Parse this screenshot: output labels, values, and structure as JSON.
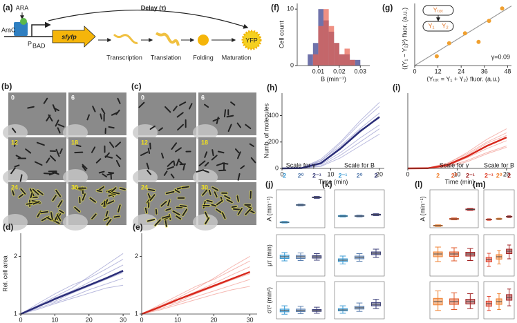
{
  "diagram": {
    "panel": "(a)",
    "inducer": "ARA",
    "activator": "AraC",
    "promoter": "P",
    "promoter_sub": "BAD",
    "gene": "sfyfp",
    "delay": "Delay (τ)",
    "steps": [
      "Transcription",
      "Translation",
      "Folding",
      "Maturation"
    ],
    "product": "YFP"
  },
  "micrographs": [
    {
      "panel": "(b)",
      "frames": [
        "0",
        "6",
        "12",
        "18",
        "24",
        "30"
      ]
    },
    {
      "panel": "(c)",
      "frames": [
        "0",
        "6",
        "12",
        "18",
        "24",
        "30"
      ]
    }
  ],
  "chart_data": [
    {
      "type": "histogram",
      "panel": "(f)",
      "ylabel": "Cell count",
      "xlabel": "B (min⁻¹)",
      "bins": [
        0.005,
        0.0075,
        0.01,
        0.0125,
        0.015,
        0.0175,
        0.02,
        0.0225,
        0.025,
        0.0275,
        0.03
      ],
      "series": [
        {
          "color": "#6f72aa",
          "values": [
            2,
            4,
            10,
            8,
            6,
            4,
            2,
            2,
            1,
            1
          ]
        },
        {
          "color": "#e8614f",
          "values": [
            0,
            2,
            7,
            10,
            7,
            4,
            2,
            3,
            1,
            0
          ]
        }
      ],
      "xlim": [
        0,
        0.0345
      ],
      "ylim": [
        0,
        11
      ],
      "xticks": [
        0.01,
        0.02,
        0.03
      ],
      "yticks": [
        0,
        10
      ]
    },
    {
      "type": "scatter",
      "panel": "(g)",
      "ylabel": "⟨(Y₁ − Y₂)²⟩ fluor. (a.u.)",
      "xlabel": "⟨Yₜₒₜ = Y₁ + Y₂⟩ fluor. (a.u.)",
      "x": [
        11.4,
        17.8,
        26,
        33,
        38.4,
        45.2
      ],
      "y": [
        0.75,
        1.8,
        2.6,
        1.9,
        3.6,
        4.6
      ],
      "color": "#f0a030",
      "fit": {
        "x": [
          0,
          50
        ],
        "y": [
          0,
          4.8
        ]
      },
      "fit_color": "#999999",
      "xlim": [
        0,
        50
      ],
      "ylim": [
        0,
        5
      ],
      "xticks": [
        0,
        12,
        24,
        36,
        48
      ],
      "annotation": "γ=0.09",
      "inset": {
        "total": "Yₜₒₜ",
        "first": "Y₁",
        "second": "Y₂"
      }
    },
    {
      "type": "line",
      "panel": "(d)",
      "ylabel": "Rel. cell area",
      "xlabel": "Time (min)",
      "x": [
        0,
        5,
        10,
        15,
        20,
        25,
        30
      ],
      "traces": [
        [
          1,
          1.15,
          1.3,
          1.45,
          1.65,
          1.85,
          2.05
        ],
        [
          1,
          1.1,
          1.2,
          1.3,
          1.42,
          1.52,
          1.62
        ],
        [
          1,
          1.18,
          1.35,
          1.5,
          1.62,
          1.78,
          1.95
        ],
        [
          1,
          1.08,
          1.18,
          1.27,
          1.36,
          1.45,
          1.5
        ],
        [
          1,
          1.12,
          1.28,
          1.4,
          1.55,
          1.7,
          1.85
        ],
        [
          1,
          1.14,
          1.22,
          1.36,
          1.48,
          1.6,
          1.72
        ]
      ],
      "mean": [
        1,
        1.13,
        1.26,
        1.38,
        1.5,
        1.62,
        1.75
      ],
      "trace_color": "#8a8cc8",
      "mean_color": "#2a2d78",
      "xlim": [
        0,
        32
      ],
      "ylim": [
        1,
        2.4
      ],
      "xticks": [
        0,
        10,
        20,
        30
      ],
      "yticks": [
        1,
        2
      ]
    },
    {
      "type": "line",
      "panel": "(e)",
      "xlabel": "Time (min)",
      "x": [
        0,
        5,
        10,
        15,
        20,
        25,
        30
      ],
      "traces": [
        [
          1,
          1.14,
          1.28,
          1.44,
          1.62,
          1.82,
          2.0
        ],
        [
          1,
          1.09,
          1.19,
          1.3,
          1.4,
          1.5,
          1.6
        ],
        [
          1,
          1.16,
          1.32,
          1.48,
          1.6,
          1.76,
          1.92
        ],
        [
          1,
          1.07,
          1.16,
          1.25,
          1.34,
          1.42,
          1.48
        ],
        [
          1,
          1.12,
          1.26,
          1.39,
          1.53,
          1.68,
          1.82
        ],
        [
          1,
          1.13,
          1.21,
          1.35,
          1.47,
          1.59,
          1.7
        ]
      ],
      "mean": [
        1,
        1.12,
        1.25,
        1.37,
        1.49,
        1.61,
        1.73
      ],
      "trace_color": "#f08a80",
      "mean_color": "#d8281c",
      "xlim": [
        0,
        32
      ],
      "ylim": [
        1,
        2.4
      ],
      "xticks": [
        0,
        10,
        20,
        30
      ],
      "yticks": [
        1,
        2
      ]
    },
    {
      "type": "line",
      "panel": "(h)",
      "ylabel": "Numb. of molecules",
      "xlabel": "Time (min)",
      "x": [
        0,
        4,
        8,
        12,
        16,
        20
      ],
      "traces": [
        [
          0,
          3,
          55,
          190,
          340,
          470
        ],
        [
          0,
          1,
          30,
          120,
          230,
          330
        ],
        [
          0,
          5,
          60,
          170,
          300,
          420
        ],
        [
          0,
          0,
          20,
          100,
          200,
          300
        ],
        [
          0,
          2,
          45,
          160,
          290,
          380
        ],
        [
          0,
          4,
          70,
          200,
          360,
          500
        ],
        [
          0,
          1,
          15,
          80,
          170,
          260
        ]
      ],
      "mean": [
        0,
        2,
        40,
        150,
        280,
        390
      ],
      "trace_color": "#8a8cc8",
      "mean_color": "#2a2d78",
      "xlim": [
        0,
        21
      ],
      "ylim": [
        0,
        570
      ],
      "xticks": [
        0,
        10,
        20
      ],
      "yticks": [
        0,
        200,
        400
      ]
    },
    {
      "type": "line",
      "panel": "(i)",
      "xlabel": "Time (min)",
      "x": [
        0,
        4,
        8,
        12,
        16,
        20
      ],
      "traces": [
        [
          0,
          2,
          35,
          120,
          220,
          300
        ],
        [
          0,
          0,
          15,
          60,
          120,
          170
        ],
        [
          0,
          3,
          40,
          110,
          200,
          270
        ],
        [
          0,
          1,
          20,
          80,
          150,
          210
        ],
        [
          0,
          2,
          30,
          100,
          190,
          250
        ],
        [
          0,
          0,
          10,
          50,
          110,
          160
        ]
      ],
      "mean": [
        0,
        1,
        25,
        90,
        170,
        235
      ],
      "trace_color": "#f08a80",
      "mean_color": "#d8281c",
      "xlim": [
        0,
        21
      ],
      "ylim": [
        0,
        570
      ],
      "xticks": [
        0,
        10,
        20
      ]
    },
    {
      "type": "box",
      "panel": "(j)",
      "header": "Scale for γ",
      "categories": [
        "2",
        "2⁰",
        "2⁻¹"
      ],
      "colors": [
        "#3a9bd5",
        "#5a7fb0",
        "#3b3f7a"
      ],
      "rows": [
        {
          "ylabel": "A (min⁻¹)",
          "ylim": [
            0,
            60
          ],
          "boxes": [
            [
              7.5,
              8.2,
              8.7,
              9.2,
              10
            ],
            [
              34.5,
              35.4,
              36,
              36.6,
              37.5
            ],
            [
              46.5,
              47.4,
              48,
              48.6,
              49.5
            ]
          ]
        },
        {
          "ylabel": "μτ (min)",
          "ylim": [
            0,
            12
          ],
          "boxes": [
            [
              4.4,
              5.1,
              5.6,
              6.1,
              6.8
            ],
            [
              4.5,
              5.1,
              5.6,
              6.0,
              6.7
            ],
            [
              4.6,
              5.2,
              5.6,
              5.9,
              6.5
            ]
          ]
        },
        {
          "ylabel": "στ² (min²)",
          "ylim": [
            0,
            40
          ],
          "boxes": [
            [
              5,
              7.5,
              8.9,
              10.5,
              14
            ],
            [
              5.5,
              7.8,
              9,
              10.5,
              13.5
            ],
            [
              6,
              8,
              9,
              10,
              12.5
            ]
          ]
        }
      ]
    },
    {
      "type": "box",
      "panel": "(k)",
      "header": "Scale for B",
      "categories": [
        "2⁻¹",
        "2⁰",
        "2"
      ],
      "colors": [
        "#3a9bd5",
        "#5a7fb0",
        "#3b3f7a"
      ],
      "rows": [
        {
          "ylim": [
            0,
            60
          ],
          "boxes": [
            [
              17,
              17.8,
              18.5,
              19.2,
              20
            ],
            [
              17,
              17.8,
              18.5,
              19.2,
              20
            ],
            [
              19.2,
              20,
              20.7,
              21.4,
              22.2
            ]
          ]
        },
        {
          "ylim": [
            0,
            12
          ],
          "boxes": [
            [
              3.5,
              4.2,
              4.6,
              5.0,
              5.8
            ],
            [
              4.3,
              5.0,
              5.4,
              5.8,
              6.5
            ],
            [
              5.4,
              6.2,
              6.6,
              7.0,
              7.8
            ]
          ]
        },
        {
          "ylim": [
            0,
            40
          ],
          "boxes": [
            [
              6,
              8.5,
              9.6,
              11,
              14
            ],
            [
              8,
              10.5,
              11.9,
              13.5,
              17
            ],
            [
              11,
              14,
              15.6,
              17.5,
              21
            ]
          ]
        }
      ]
    },
    {
      "type": "box",
      "panel": "(l)",
      "header": "Scale for γ",
      "categories": [
        "2",
        "2⁰",
        "2⁻¹"
      ],
      "colors": [
        "#f08030",
        "#e05a2a",
        "#a02020"
      ],
      "rows": [
        {
          "ylabel": "A (min⁻¹)",
          "ylim": [
            0,
            60
          ],
          "boxes": [
            [
              2,
              2.7,
              3.3,
              3.9,
              4.6
            ],
            [
              12.5,
              13.3,
              14,
              14.7,
              15.5
            ],
            [
              27.5,
              28.3,
              29,
              29.7,
              30.5
            ]
          ]
        },
        {
          "ylim": [
            0,
            12
          ],
          "boxes": [
            [
              4.2,
              5.6,
              6.4,
              7.0,
              8.4
            ],
            [
              4.4,
              5.7,
              6.4,
              7.0,
              8.2
            ],
            [
              4.5,
              5.8,
              6.4,
              6.9,
              8.0
            ]
          ]
        },
        {
          "ylim": [
            0,
            40
          ],
          "boxes": [
            [
              9,
              15,
              18.5,
              22,
              30
            ],
            [
              10,
              15.5,
              18.5,
              21.5,
              28
            ],
            [
              11,
              16,
              18.5,
              21,
              27
            ]
          ]
        }
      ]
    },
    {
      "type": "box",
      "panel": "(m)",
      "header": "Scale for B",
      "categories": [
        "2⁻¹",
        "2⁰",
        "2"
      ],
      "colors": [
        "#e0402a",
        "#f08030",
        "#a02020"
      ],
      "rows": [
        {
          "ylim": [
            0,
            60
          ],
          "boxes": [
            [
              11.8,
              12.4,
              13,
              13.6,
              14.2
            ],
            [
              12.8,
              13.4,
              14,
              14.6,
              15.2
            ],
            [
              16.2,
              16.9,
              17.5,
              18.1,
              18.8
            ]
          ]
        },
        {
          "ylim": [
            0,
            12
          ],
          "boxes": [
            [
              2.8,
              4.1,
              4.8,
              5.4,
              6.6
            ],
            [
              3.5,
              4.9,
              5.6,
              6.2,
              7.4
            ],
            [
              5.0,
              6.5,
              7.2,
              7.8,
              9.0
            ]
          ]
        },
        {
          "ylim": [
            0,
            40
          ],
          "boxes": [
            [
              9,
              13.5,
              16.3,
              19,
              24
            ],
            [
              10,
              15.5,
              18.5,
              21.5,
              27
            ],
            [
              14,
              20,
              23,
              26,
              32
            ]
          ]
        }
      ]
    }
  ]
}
